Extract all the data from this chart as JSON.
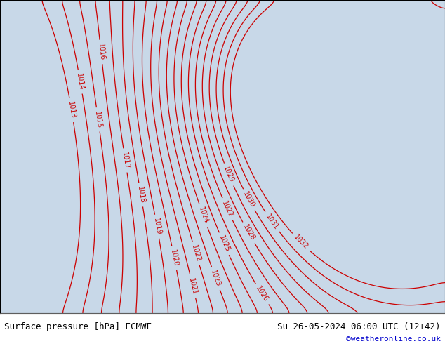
{
  "title_left": "Surface pressure [hPa] ECMWF",
  "title_right": "Su 26-05-2024 06:00 UTC (12+42)",
  "copyright": "©weatheronline.co.uk",
  "contour_color": "#cc0000",
  "land_color_low": "#d8d8d8",
  "land_color_high": "#aadd88",
  "sea_color": "#c8d8e8",
  "border_color": "#111111",
  "label_color": "#cc0000",
  "bg_color": "#ffffff",
  "footer_bg": "#ffffff",
  "pressure_min": 1013,
  "pressure_max": 1032,
  "contour_interval": 1,
  "figsize": [
    6.34,
    4.9
  ],
  "dpi": 100,
  "footer_text_color": "#000000",
  "copyright_color": "#0000cc"
}
